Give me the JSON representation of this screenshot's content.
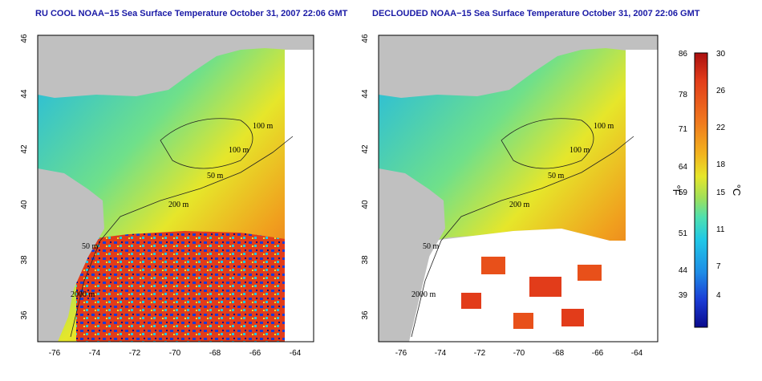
{
  "panels": [
    {
      "id": "left",
      "title": "RU COOL NOAA−15 Sea Surface Temperature October 31, 2007 22:06 GMT",
      "x_ticks": [
        "-76",
        "-74",
        "-72",
        "-70",
        "-68",
        "-66",
        "-64"
      ],
      "y_ticks": [
        "46",
        "44",
        "42",
        "40",
        "38",
        "36"
      ],
      "contour_labels": [
        "100 m",
        "100 m",
        "50 m",
        "200 m",
        "50 m",
        "2000 m"
      ],
      "cloud_masked": false
    },
    {
      "id": "right",
      "title": "DECLOUDED NOAA−15 Sea Surface Temperature October 31, 2007 22:06 GMT",
      "x_ticks": [
        "-76",
        "-74",
        "-72",
        "-70",
        "-68",
        "-66",
        "-64"
      ],
      "y_ticks": [
        "46",
        "44",
        "42",
        "40",
        "38",
        "36"
      ],
      "contour_labels": [
        "100 m",
        "100 m",
        "50 m",
        "200 m",
        "50 m",
        "2000 m"
      ],
      "cloud_masked": true
    }
  ],
  "colorbar": {
    "fahrenheit_unit": "°F",
    "celsius_unit": "°C",
    "fahrenheit_ticks": [
      "86",
      "78",
      "71",
      "64",
      "59",
      "51",
      "44",
      "39"
    ],
    "celsius_ticks": [
      "30",
      "26",
      "22",
      "18",
      "15",
      "11",
      "7",
      "4"
    ],
    "colors": [
      "#0a0a8c",
      "#1a3cd6",
      "#1e8ce6",
      "#20c8e6",
      "#4ee0b0",
      "#9ee05a",
      "#e6e62a",
      "#f2b41e",
      "#f0781e",
      "#e23c1a",
      "#aa0f0f"
    ]
  },
  "colors": {
    "land": "#c0c0c0",
    "title": "#1a1aa6",
    "grid": "#9a9a9a"
  }
}
